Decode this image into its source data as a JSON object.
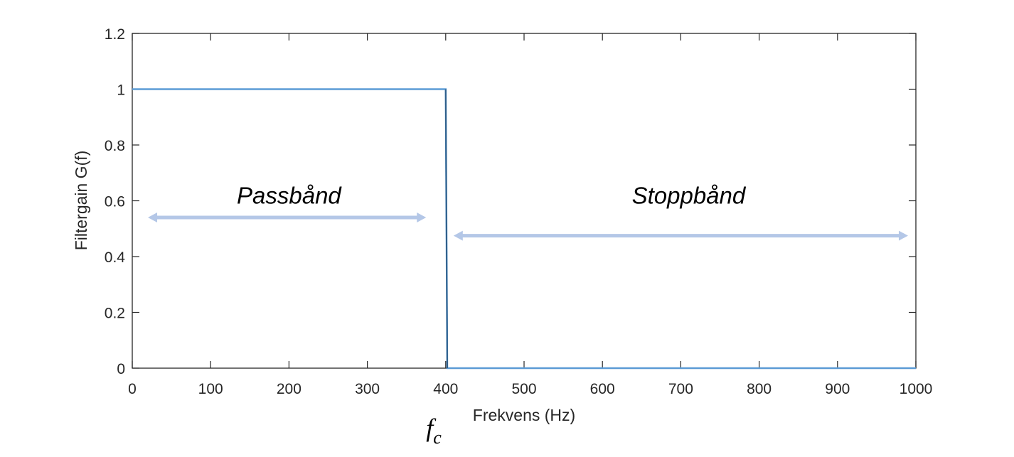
{
  "chart_data": {
    "type": "line",
    "title": "",
    "xlabel": "Frekvens (Hz)",
    "ylabel": "Filtergain G(f)",
    "xlim": [
      0,
      1000
    ],
    "ylim": [
      0,
      1.2
    ],
    "xticks": [
      0,
      100,
      200,
      300,
      400,
      500,
      600,
      700,
      800,
      900,
      1000
    ],
    "xtick_labels": [
      "0",
      "100",
      "200",
      "300",
      "400",
      "500",
      "600",
      "700",
      "800",
      "900",
      "1000"
    ],
    "yticks": [
      0,
      0.2,
      0.4,
      0.6,
      0.8,
      1,
      1.2
    ],
    "ytick_labels": [
      "0",
      "0.2",
      "0.4",
      "0.6",
      "0.8",
      "1",
      "1.2"
    ],
    "grid": false,
    "series": [
      {
        "color": "#5b9bd5",
        "points": [
          [
            0,
            1
          ],
          [
            400,
            1
          ],
          [
            402,
            0
          ],
          [
            1000,
            0
          ]
        ]
      }
    ],
    "annotations": [
      {
        "text": "Passbånd",
        "x": 200,
        "y": 0.62
      },
      {
        "text": "Stoppbånd",
        "x": 710,
        "y": 0.62
      }
    ],
    "arrows": [
      {
        "x_start": 20,
        "x_end": 375,
        "y": 0.54,
        "color": "#b4c7e7"
      },
      {
        "x_start": 410,
        "x_end": 990,
        "y": 0.475,
        "color": "#b4c7e7"
      }
    ],
    "cutoff_marker": {
      "text": "f",
      "subscript": "c",
      "x": 375
    }
  }
}
